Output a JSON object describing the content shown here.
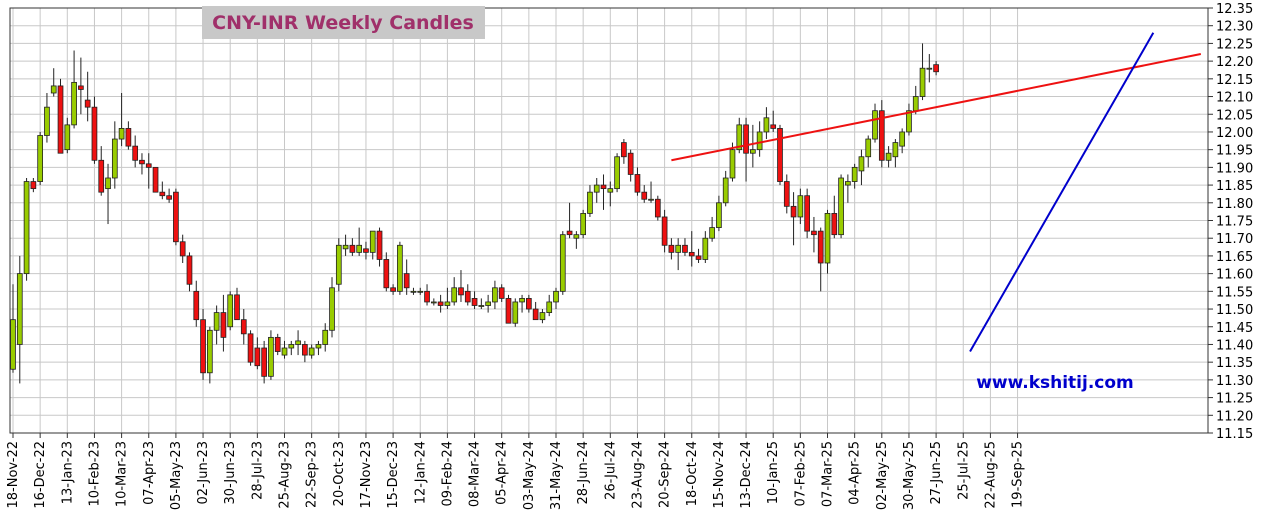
{
  "chart_data": {
    "type": "candlestick",
    "title": "CNY-INR Weekly Candles",
    "watermark": "www.kshitij.com",
    "grid": true,
    "y_axis_position": "right",
    "ylim": [
      11.15,
      12.35
    ],
    "y_ticks": [
      11.15,
      11.2,
      11.25,
      11.3,
      11.35,
      11.4,
      11.45,
      11.5,
      11.55,
      11.6,
      11.65,
      11.7,
      11.75,
      11.8,
      11.85,
      11.9,
      11.95,
      12.0,
      12.05,
      12.1,
      12.15,
      12.2,
      12.25,
      12.3,
      12.35
    ],
    "y_tick_labels": [
      "11.15",
      "11.20",
      "11.25",
      "11.30",
      "11.35",
      "11.40",
      "11.45",
      "11.50",
      "11.55",
      "11.60",
      "11.65",
      "11.70",
      "11.75",
      "11.80",
      "11.85",
      "11.90",
      "11.95",
      "12.00",
      "12.05",
      "12.10",
      "12.15",
      "12.20",
      "12.25",
      "12.30",
      "12.35"
    ],
    "x_start": "2022-11-18",
    "x_tick_labels": [
      "18-Nov-22",
      "16-Dec-22",
      "13-Jan-23",
      "10-Feb-23",
      "10-Mar-23",
      "07-Apr-23",
      "05-May-23",
      "02-Jun-23",
      "30-Jun-23",
      "28-Jul-23",
      "25-Aug-23",
      "22-Sep-23",
      "20-Oct-23",
      "17-Nov-23",
      "15-Dec-23",
      "12-Jan-24",
      "09-Feb-24",
      "08-Mar-24",
      "05-Apr-24",
      "03-May-24",
      "31-May-24",
      "28-Jun-24",
      "26-Jul-24",
      "23-Aug-24",
      "20-Sep-24",
      "18-Oct-24",
      "15-Nov-24",
      "13-Dec-24",
      "10-Jan-25",
      "07-Feb-25",
      "07-Mar-25",
      "04-Apr-25",
      "02-May-25",
      "30-May-25",
      "27-Jun-25",
      "25-Jul-25",
      "22-Aug-25",
      "19-Sep-25"
    ],
    "colors": {
      "up": "#99cc00",
      "down": "#ee1111",
      "resistance": "#ee1111",
      "support": "#0000cc"
    },
    "candles": [
      {
        "o": 11.33,
        "h": 11.57,
        "l": 11.32,
        "c": 11.47
      },
      {
        "o": 11.4,
        "h": 11.65,
        "l": 11.29,
        "c": 11.6
      },
      {
        "o": 11.6,
        "h": 11.87,
        "l": 11.58,
        "c": 11.86
      },
      {
        "o": 11.86,
        "h": 11.87,
        "l": 11.83,
        "c": 11.84
      },
      {
        "o": 11.86,
        "h": 12.0,
        "l": 11.85,
        "c": 11.99
      },
      {
        "o": 11.99,
        "h": 12.11,
        "l": 11.97,
        "c": 12.07
      },
      {
        "o": 12.11,
        "h": 12.18,
        "l": 12.1,
        "c": 12.13
      },
      {
        "o": 12.13,
        "h": 12.15,
        "l": 11.95,
        "c": 11.94
      },
      {
        "o": 11.95,
        "h": 12.04,
        "l": 11.94,
        "c": 12.02
      },
      {
        "o": 12.02,
        "h": 12.23,
        "l": 12.01,
        "c": 12.14
      },
      {
        "o": 12.13,
        "h": 12.21,
        "l": 12.05,
        "c": 12.12
      },
      {
        "o": 12.09,
        "h": 12.17,
        "l": 12.03,
        "c": 12.07
      },
      {
        "o": 12.07,
        "h": 12.1,
        "l": 11.91,
        "c": 11.92
      },
      {
        "o": 11.92,
        "h": 11.96,
        "l": 11.82,
        "c": 11.83
      },
      {
        "o": 11.84,
        "h": 11.91,
        "l": 11.74,
        "c": 11.87
      },
      {
        "o": 11.87,
        "h": 12.03,
        "l": 11.84,
        "c": 11.98
      },
      {
        "o": 11.98,
        "h": 12.11,
        "l": 11.96,
        "c": 12.01
      },
      {
        "o": 12.01,
        "h": 12.03,
        "l": 11.95,
        "c": 11.96
      },
      {
        "o": 11.96,
        "h": 11.99,
        "l": 11.9,
        "c": 11.92
      },
      {
        "o": 11.92,
        "h": 11.94,
        "l": 11.88,
        "c": 11.91
      },
      {
        "o": 11.91,
        "h": 11.94,
        "l": 11.84,
        "c": 11.9
      },
      {
        "o": 11.9,
        "h": 11.9,
        "l": 11.83,
        "c": 11.83
      },
      {
        "o": 11.83,
        "h": 11.86,
        "l": 11.81,
        "c": 11.82
      },
      {
        "o": 11.82,
        "h": 11.84,
        "l": 11.8,
        "c": 11.81
      },
      {
        "o": 11.83,
        "h": 11.84,
        "l": 11.68,
        "c": 11.69
      },
      {
        "o": 11.69,
        "h": 11.71,
        "l": 11.63,
        "c": 11.65
      },
      {
        "o": 11.65,
        "h": 11.66,
        "l": 11.55,
        "c": 11.57
      },
      {
        "o": 11.55,
        "h": 11.58,
        "l": 11.45,
        "c": 11.47
      },
      {
        "o": 11.47,
        "h": 11.5,
        "l": 11.3,
        "c": 11.32
      },
      {
        "o": 11.32,
        "h": 11.45,
        "l": 11.29,
        "c": 11.44
      },
      {
        "o": 11.44,
        "h": 11.51,
        "l": 11.4,
        "c": 11.49
      },
      {
        "o": 11.49,
        "h": 11.54,
        "l": 11.38,
        "c": 11.42
      },
      {
        "o": 11.45,
        "h": 11.55,
        "l": 11.44,
        "c": 11.54
      },
      {
        "o": 11.54,
        "h": 11.56,
        "l": 11.48,
        "c": 11.47
      },
      {
        "o": 11.47,
        "h": 11.5,
        "l": 11.4,
        "c": 11.43
      },
      {
        "o": 11.43,
        "h": 11.44,
        "l": 11.34,
        "c": 11.35
      },
      {
        "o": 11.39,
        "h": 11.42,
        "l": 11.33,
        "c": 11.34
      },
      {
        "o": 11.39,
        "h": 11.41,
        "l": 11.29,
        "c": 11.31
      },
      {
        "o": 11.31,
        "h": 11.44,
        "l": 11.3,
        "c": 11.42
      },
      {
        "o": 11.42,
        "h": 11.43,
        "l": 11.37,
        "c": 11.38
      },
      {
        "o": 11.37,
        "h": 11.41,
        "l": 11.36,
        "c": 11.39
      },
      {
        "o": 11.39,
        "h": 11.41,
        "l": 11.37,
        "c": 11.4
      },
      {
        "o": 11.4,
        "h": 11.44,
        "l": 11.37,
        "c": 11.41
      },
      {
        "o": 11.4,
        "h": 11.41,
        "l": 11.35,
        "c": 11.37
      },
      {
        "o": 11.37,
        "h": 11.4,
        "l": 11.36,
        "c": 11.39
      },
      {
        "o": 11.39,
        "h": 11.41,
        "l": 11.37,
        "c": 11.4
      },
      {
        "o": 11.4,
        "h": 11.46,
        "l": 11.38,
        "c": 11.44
      },
      {
        "o": 11.44,
        "h": 11.59,
        "l": 11.42,
        "c": 11.56
      },
      {
        "o": 11.57,
        "h": 11.7,
        "l": 11.55,
        "c": 11.68
      },
      {
        "o": 11.67,
        "h": 11.71,
        "l": 11.65,
        "c": 11.68
      },
      {
        "o": 11.68,
        "h": 11.7,
        "l": 11.65,
        "c": 11.66
      },
      {
        "o": 11.66,
        "h": 11.73,
        "l": 11.65,
        "c": 11.68
      },
      {
        "o": 11.67,
        "h": 11.69,
        "l": 11.64,
        "c": 11.66
      },
      {
        "o": 11.66,
        "h": 11.72,
        "l": 11.64,
        "c": 11.72
      },
      {
        "o": 11.72,
        "h": 11.73,
        "l": 11.62,
        "c": 11.64
      },
      {
        "o": 11.64,
        "h": 11.66,
        "l": 11.55,
        "c": 11.56
      },
      {
        "o": 11.56,
        "h": 11.57,
        "l": 11.54,
        "c": 11.55
      },
      {
        "o": 11.55,
        "h": 11.69,
        "l": 11.54,
        "c": 11.68
      },
      {
        "o": 11.6,
        "h": 11.64,
        "l": 11.54,
        "c": 11.56
      },
      {
        "o": 11.55,
        "h": 11.56,
        "l": 11.54,
        "c": 11.55
      },
      {
        "o": 11.55,
        "h": 11.56,
        "l": 11.54,
        "c": 11.55
      },
      {
        "o": 11.55,
        "h": 11.57,
        "l": 11.51,
        "c": 11.52
      },
      {
        "o": 11.52,
        "h": 11.53,
        "l": 11.51,
        "c": 11.52
      },
      {
        "o": 11.52,
        "h": 11.54,
        "l": 11.49,
        "c": 11.51
      },
      {
        "o": 11.51,
        "h": 11.56,
        "l": 11.5,
        "c": 11.52
      },
      {
        "o": 11.52,
        "h": 11.59,
        "l": 11.51,
        "c": 11.56
      },
      {
        "o": 11.56,
        "h": 11.61,
        "l": 11.52,
        "c": 11.54
      },
      {
        "o": 11.55,
        "h": 11.57,
        "l": 11.51,
        "c": 11.52
      },
      {
        "o": 11.53,
        "h": 11.55,
        "l": 11.5,
        "c": 11.51
      },
      {
        "o": 11.51,
        "h": 11.53,
        "l": 11.5,
        "c": 11.51
      },
      {
        "o": 11.51,
        "h": 11.54,
        "l": 11.49,
        "c": 11.52
      },
      {
        "o": 11.52,
        "h": 11.58,
        "l": 11.5,
        "c": 11.56
      },
      {
        "o": 11.56,
        "h": 11.57,
        "l": 11.52,
        "c": 11.53
      },
      {
        "o": 11.53,
        "h": 11.54,
        "l": 11.46,
        "c": 11.46
      },
      {
        "o": 11.46,
        "h": 11.53,
        "l": 11.45,
        "c": 11.52
      },
      {
        "o": 11.52,
        "h": 11.54,
        "l": 11.49,
        "c": 11.53
      },
      {
        "o": 11.53,
        "h": 11.54,
        "l": 11.49,
        "c": 11.5
      },
      {
        "o": 11.5,
        "h": 11.52,
        "l": 11.47,
        "c": 11.47
      },
      {
        "o": 11.47,
        "h": 11.5,
        "l": 11.46,
        "c": 11.49
      },
      {
        "o": 11.49,
        "h": 11.54,
        "l": 11.48,
        "c": 11.52
      },
      {
        "o": 11.52,
        "h": 11.56,
        "l": 11.5,
        "c": 11.55
      },
      {
        "o": 11.55,
        "h": 11.72,
        "l": 11.54,
        "c": 11.71
      },
      {
        "o": 11.72,
        "h": 11.8,
        "l": 11.7,
        "c": 11.71
      },
      {
        "o": 11.7,
        "h": 11.72,
        "l": 11.67,
        "c": 11.71
      },
      {
        "o": 11.71,
        "h": 11.78,
        "l": 11.7,
        "c": 11.77
      },
      {
        "o": 11.77,
        "h": 11.85,
        "l": 11.76,
        "c": 11.83
      },
      {
        "o": 11.83,
        "h": 11.87,
        "l": 11.8,
        "c": 11.85
      },
      {
        "o": 11.85,
        "h": 11.88,
        "l": 11.78,
        "c": 11.84
      },
      {
        "o": 11.83,
        "h": 11.86,
        "l": 11.79,
        "c": 11.84
      },
      {
        "o": 11.84,
        "h": 11.94,
        "l": 11.83,
        "c": 11.93
      },
      {
        "o": 11.97,
        "h": 11.98,
        "l": 11.91,
        "c": 11.93
      },
      {
        "o": 11.94,
        "h": 11.95,
        "l": 11.86,
        "c": 11.88
      },
      {
        "o": 11.88,
        "h": 11.9,
        "l": 11.82,
        "c": 11.83
      },
      {
        "o": 11.83,
        "h": 11.85,
        "l": 11.8,
        "c": 11.81
      },
      {
        "o": 11.81,
        "h": 11.86,
        "l": 11.8,
        "c": 11.81
      },
      {
        "o": 11.81,
        "h": 11.82,
        "l": 11.75,
        "c": 11.76
      },
      {
        "o": 11.76,
        "h": 11.78,
        "l": 11.66,
        "c": 11.68
      },
      {
        "o": 11.68,
        "h": 11.7,
        "l": 11.64,
        "c": 11.66
      },
      {
        "o": 11.66,
        "h": 11.7,
        "l": 11.61,
        "c": 11.68
      },
      {
        "o": 11.68,
        "h": 11.7,
        "l": 11.65,
        "c": 11.66
      },
      {
        "o": 11.66,
        "h": 11.72,
        "l": 11.62,
        "c": 11.65
      },
      {
        "o": 11.65,
        "h": 11.67,
        "l": 11.63,
        "c": 11.64
      },
      {
        "o": 11.64,
        "h": 11.72,
        "l": 11.63,
        "c": 11.7
      },
      {
        "o": 11.7,
        "h": 11.76,
        "l": 11.69,
        "c": 11.73
      },
      {
        "o": 11.73,
        "h": 11.82,
        "l": 11.72,
        "c": 11.8
      },
      {
        "o": 11.8,
        "h": 11.89,
        "l": 11.79,
        "c": 11.87
      },
      {
        "o": 11.87,
        "h": 11.97,
        "l": 11.86,
        "c": 11.95
      },
      {
        "o": 11.95,
        "h": 12.04,
        "l": 11.94,
        "c": 12.02
      },
      {
        "o": 12.02,
        "h": 12.04,
        "l": 11.86,
        "c": 11.94
      },
      {
        "o": 11.94,
        "h": 12.02,
        "l": 11.9,
        "c": 11.95
      },
      {
        "o": 11.95,
        "h": 12.03,
        "l": 11.93,
        "c": 12.0
      },
      {
        "o": 12.0,
        "h": 12.07,
        "l": 11.98,
        "c": 12.04
      },
      {
        "o": 12.02,
        "h": 12.06,
        "l": 12.0,
        "c": 12.01
      },
      {
        "o": 12.01,
        "h": 12.02,
        "l": 11.85,
        "c": 11.86
      },
      {
        "o": 11.86,
        "h": 11.88,
        "l": 11.77,
        "c": 11.79
      },
      {
        "o": 11.79,
        "h": 11.83,
        "l": 11.68,
        "c": 11.76
      },
      {
        "o": 11.76,
        "h": 11.84,
        "l": 11.74,
        "c": 11.82
      },
      {
        "o": 11.82,
        "h": 11.84,
        "l": 11.7,
        "c": 11.72
      },
      {
        "o": 11.72,
        "h": 11.76,
        "l": 11.66,
        "c": 11.71
      },
      {
        "o": 11.72,
        "h": 11.73,
        "l": 11.55,
        "c": 11.63
      },
      {
        "o": 11.63,
        "h": 11.78,
        "l": 11.6,
        "c": 11.77
      },
      {
        "o": 11.77,
        "h": 11.82,
        "l": 11.7,
        "c": 11.71
      },
      {
        "o": 11.71,
        "h": 11.88,
        "l": 11.7,
        "c": 11.87
      },
      {
        "o": 11.85,
        "h": 11.88,
        "l": 11.8,
        "c": 11.86
      },
      {
        "o": 11.86,
        "h": 11.91,
        "l": 11.84,
        "c": 11.9
      },
      {
        "o": 11.89,
        "h": 11.95,
        "l": 11.85,
        "c": 11.93
      },
      {
        "o": 11.93,
        "h": 11.99,
        "l": 11.9,
        "c": 11.98
      },
      {
        "o": 11.98,
        "h": 12.08,
        "l": 11.97,
        "c": 12.06
      },
      {
        "o": 12.06,
        "h": 12.09,
        "l": 11.9,
        "c": 11.92
      },
      {
        "o": 11.92,
        "h": 11.96,
        "l": 11.9,
        "c": 11.94
      },
      {
        "o": 11.93,
        "h": 11.98,
        "l": 11.9,
        "c": 11.97
      },
      {
        "o": 11.96,
        "h": 12.01,
        "l": 11.94,
        "c": 12.0
      },
      {
        "o": 12.0,
        "h": 12.08,
        "l": 11.99,
        "c": 12.06
      },
      {
        "o": 12.06,
        "h": 12.13,
        "l": 12.05,
        "c": 12.1
      },
      {
        "o": 12.1,
        "h": 12.25,
        "l": 12.09,
        "c": 12.18
      },
      {
        "o": 12.18,
        "h": 12.22,
        "l": 12.14,
        "c": 12.18
      },
      {
        "o": 12.19,
        "h": 12.2,
        "l": 12.16,
        "c": 12.17
      }
    ],
    "trendlines": [
      {
        "name": "resistance",
        "color": "#ee1111",
        "from": {
          "week": 97,
          "price": 11.92
        },
        "to": {
          "week": 175,
          "price": 12.22
        }
      },
      {
        "name": "support",
        "color": "#0000cc",
        "from": {
          "week": 141,
          "price": 11.38
        },
        "to": {
          "week": 168,
          "price": 12.28
        }
      }
    ]
  }
}
